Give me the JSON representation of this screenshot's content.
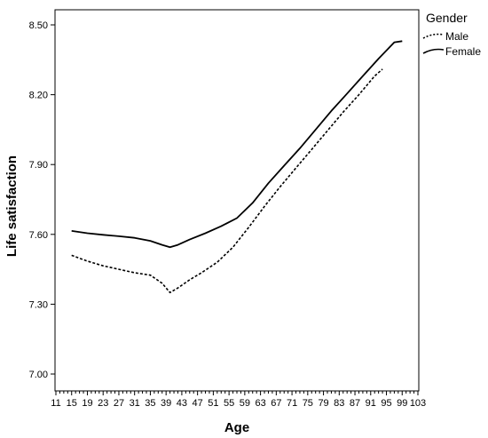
{
  "chart_data": {
    "type": "line",
    "title": "",
    "xlabel": "Age",
    "ylabel": "Life satisfaction",
    "xlim": [
      11,
      103
    ],
    "ylim": [
      7.0,
      8.5
    ],
    "x_ticks": [
      11,
      15,
      19,
      23,
      27,
      31,
      35,
      39,
      43,
      47,
      51,
      55,
      59,
      63,
      67,
      71,
      75,
      79,
      83,
      87,
      91,
      95,
      99,
      103
    ],
    "y_ticks": [
      7.0,
      7.3,
      7.6,
      7.9,
      8.2,
      8.5
    ],
    "y_tick_labels": [
      "7.00",
      "7.30",
      "7.60",
      "7.90",
      "8.20",
      "8.50"
    ],
    "grid": false,
    "legend": {
      "title": "Gender",
      "placement": "outside-top-right"
    },
    "series": [
      {
        "name": "Male",
        "style": "dotted",
        "color": "#000000",
        "x": [
          15,
          19,
          23,
          27,
          31,
          35,
          38,
          40,
          42,
          45,
          48,
          52,
          56,
          60,
          64,
          68,
          72,
          76,
          80,
          84,
          88,
          92,
          94
        ],
        "y": [
          7.51,
          7.485,
          7.465,
          7.45,
          7.435,
          7.425,
          7.39,
          7.35,
          7.37,
          7.405,
          7.435,
          7.48,
          7.545,
          7.63,
          7.72,
          7.805,
          7.885,
          7.965,
          8.045,
          8.125,
          8.2,
          8.28,
          8.31
        ]
      },
      {
        "name": "Female",
        "style": "solid",
        "color": "#000000",
        "x": [
          15,
          19,
          23,
          27,
          31,
          35,
          38,
          40,
          42,
          45,
          49,
          53,
          57,
          61,
          65,
          69,
          73,
          77,
          81,
          85,
          89,
          93,
          97,
          99
        ],
        "y": [
          7.615,
          7.605,
          7.598,
          7.592,
          7.585,
          7.572,
          7.555,
          7.545,
          7.555,
          7.578,
          7.605,
          7.635,
          7.67,
          7.735,
          7.82,
          7.895,
          7.97,
          8.05,
          8.13,
          8.205,
          8.28,
          8.355,
          8.425,
          8.43
        ]
      }
    ]
  }
}
